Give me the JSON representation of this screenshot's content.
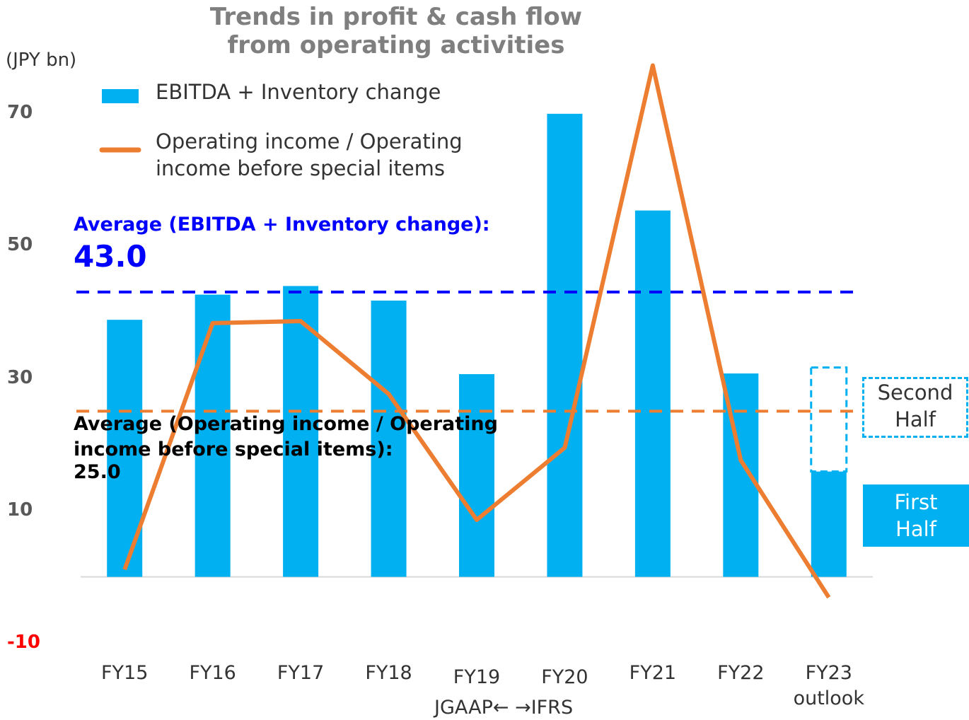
{
  "chart_data": {
    "type": "bar",
    "title": "Trends in profit & cash flow from operating activities",
    "y_axis_label": "(JPY bn)",
    "categories": [
      "FY15",
      "FY16",
      "FY17",
      "FY18",
      "FY19",
      "FY20",
      "FY21",
      "FY22",
      "FY23 outlook"
    ],
    "series": [
      {
        "name": "EBITDA + Inventory change",
        "color": "#00b0f0",
        "type": "bar",
        "values": [
          38.8,
          42.6,
          43.9,
          41.7,
          30.6,
          69.9,
          55.3,
          30.7,
          15.9
        ]
      },
      {
        "name": "Operating income / Operating income before special items",
        "color": "#ed7d31",
        "type": "line",
        "values": [
          1.1,
          38.3,
          38.6,
          27.6,
          8.6,
          19.5,
          77.2,
          17.6,
          -3.1
        ]
      },
      {
        "name": "Second Half",
        "color": "#00b0f0",
        "type": "dashed-bar",
        "values": [
          null,
          null,
          null,
          null,
          null,
          null,
          null,
          null,
          15.7
        ]
      }
    ],
    "average_lines": [
      {
        "label": "Average (EBITDA + Inventory change):",
        "value": 43,
        "value_label": "43.0",
        "color": "#0000ff"
      },
      {
        "label": "Average (Operating income / Operating income before special items):",
        "value": 25,
        "value_label": "25.0",
        "color": "#ed7d31"
      }
    ],
    "first_half_label": "First Half",
    "transition_label": "JGAAP← →IFRS",
    "ylim": [
      -12,
      78
    ],
    "yticks": [
      -10,
      10,
      30,
      50,
      70
    ],
    "negative_tick_color": "#ff0000"
  }
}
